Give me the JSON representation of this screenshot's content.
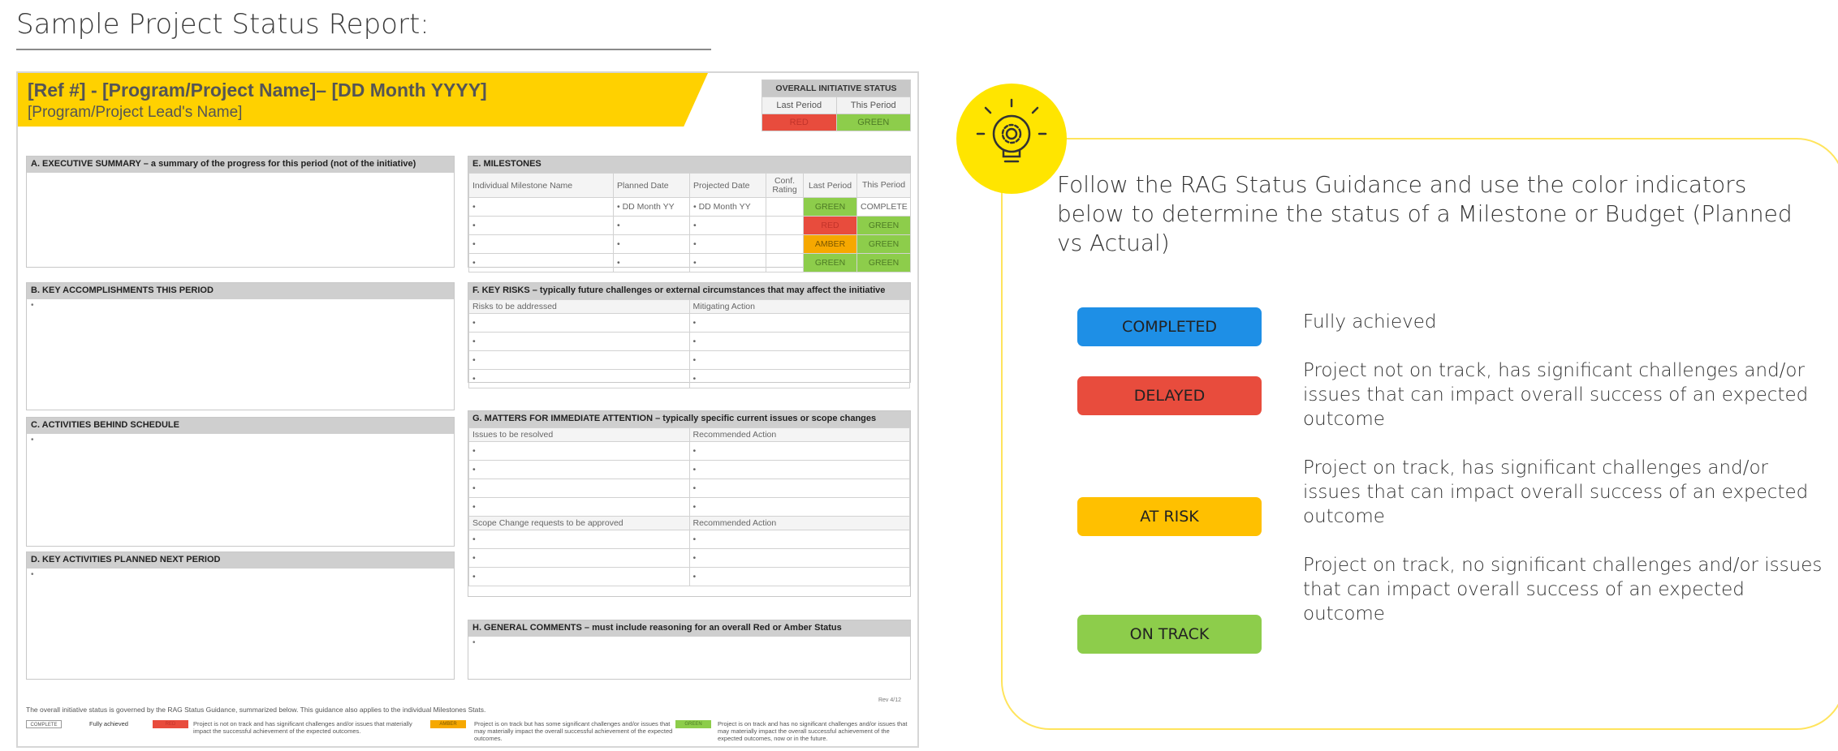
{
  "page": {
    "title": "Sample Project Status Report:"
  },
  "report": {
    "title": "[Ref #] - [Program/Project Name]– [DD Month YYYY]",
    "lead": "[Program/Project Lead's Name]",
    "overall_status": {
      "header": "OVERALL INITIATIVE STATUS",
      "last_label": "Last Period",
      "this_label": "This Period",
      "last_value": "RED",
      "this_value": "GREEN"
    },
    "sections": {
      "a": "A.  EXECUTIVE SUMMARY – a summary of the progress for this period (not of the initiative)",
      "b": "B.  KEY ACCOMPLISHMENTS THIS PERIOD",
      "c": "C.  ACTIVITIES BEHIND SCHEDULE",
      "d": "D.  KEY ACTIVITIES PLANNED NEXT PERIOD",
      "e": "E.  MILESTONES",
      "f": "F.  KEY RISKS – typically future challenges or external circumstances that may affect the initiative",
      "g": "G. MATTERS FOR IMMEDIATE ATTENTION – typically specific current issues or scope changes",
      "h": "H.  GENERAL COMMENTS – must include reasoning for an overall Red or Amber Status"
    },
    "bullet": "•",
    "milestones": {
      "headers": [
        "Individual Milestone Name",
        "Planned Date",
        "Projected Date",
        "Conf. Rating",
        "Last Period",
        "This Period"
      ],
      "rows": [
        {
          "name": "•",
          "planned": "•  DD Month YY",
          "projected": "•  DD Month YY",
          "conf": "",
          "last": "GREEN",
          "this": "COMPLETE"
        },
        {
          "name": "•",
          "planned": "•",
          "projected": "•",
          "conf": "",
          "last": "RED",
          "this": "GREEN"
        },
        {
          "name": "•",
          "planned": "•",
          "projected": "•",
          "conf": "",
          "last": "AMBER",
          "this": "GREEN"
        },
        {
          "name": "•",
          "planned": "•",
          "projected": "•",
          "conf": "",
          "last": "GREEN",
          "this": "GREEN"
        }
      ]
    },
    "risks": {
      "col1": "Risks to be addressed",
      "col2": "Mitigating Action",
      "rows": 4
    },
    "matters": {
      "col1": "Issues to be resolved",
      "col2": "Recommended Action",
      "scope_col1": "Scope Change requests to be approved",
      "scope_col2": "Recommended Action"
    },
    "footer": {
      "note": "The overall initiative status is governed by the RAG Status Guidance, summarized below. This guidance also applies to the individual Milestones Stats.",
      "rev": "Rev 4/12",
      "legend": [
        {
          "chip": "COMPLETE",
          "text": "Fully achieved"
        },
        {
          "chip": "RED",
          "text": "Project is not on track and has significant challenges and/or issues that materially impact the successful achievement of the expected outcomes."
        },
        {
          "chip": "AMBER",
          "text": "Project is on track but has some significant challenges and/or issues that may materially impact the overall successful achievement of the expected outcomes."
        },
        {
          "chip": "GREEN",
          "text": "Project is on track and has no significant challenges and/or issues that may materially impact the overall successful achievement of the expected outcomes, now or in the future."
        }
      ]
    }
  },
  "guidance": {
    "intro": "Follow the RAG Status Guidance and use the color indicators below to determine the status of a Milestone or Budget (Planned vs Actual)",
    "items": [
      {
        "label": "COMPLETED",
        "desc": "Fully achieved",
        "color": "#1e8fe6"
      },
      {
        "label": "DELAYED",
        "desc": "Project not on track, has significant challenges and/or issues that can impact overall success of an expected outcome",
        "color": "#e84c3d"
      },
      {
        "label": "AT RISK",
        "desc": "Project on track, has significant challenges and/or issues that can impact overall success of an expected outcome",
        "color": "#ffc000"
      },
      {
        "label": "ON TRACK",
        "desc": "Project on track, no significant challenges and/or issues that can impact overall success of an expected outcome",
        "color": "#8dcd4b"
      }
    ]
  }
}
